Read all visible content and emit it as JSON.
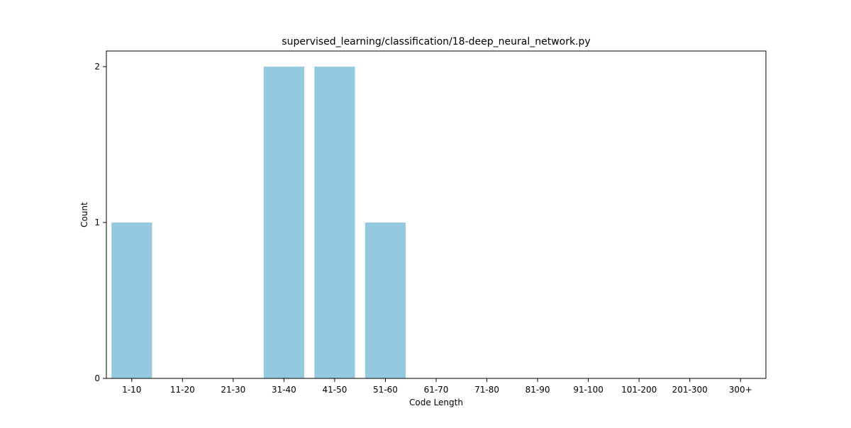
{
  "chart_data": {
    "type": "bar",
    "title": "supervised_learning/classification/18-deep_neural_network.py",
    "xlabel": "Code Length",
    "ylabel": "Count",
    "categories": [
      "1-10",
      "11-20",
      "21-30",
      "31-40",
      "41-50",
      "51-60",
      "61-70",
      "71-80",
      "81-90",
      "91-100",
      "101-200",
      "201-300",
      "300+"
    ],
    "values": [
      1,
      0,
      0,
      2,
      2,
      1,
      0,
      0,
      0,
      0,
      0,
      0,
      0
    ],
    "yticks": [
      0,
      1,
      2
    ],
    "ylim": [
      0,
      2.1
    ],
    "grid": false,
    "legend": "none",
    "colors": {
      "bar": "#95c9df",
      "axis": "#000000"
    }
  }
}
